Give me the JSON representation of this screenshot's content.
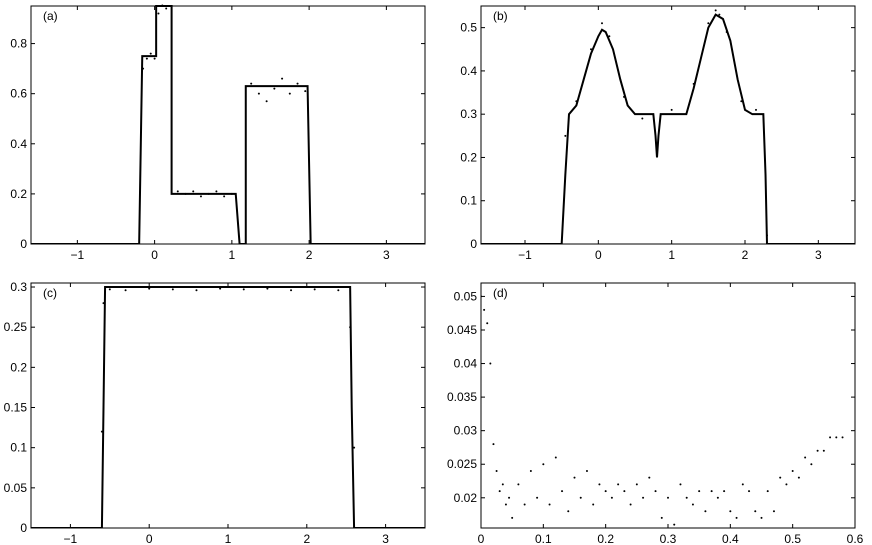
{
  "chart_data": [
    {
      "id": "a",
      "type": "line",
      "panel_label": "(a)",
      "xlim": [
        -1.6,
        3.5
      ],
      "ylim": [
        0,
        0.95
      ],
      "xticks": [
        -1,
        0,
        1,
        2,
        3
      ],
      "xtick_labels": [
        "−1",
        "0",
        "1",
        "2",
        "3"
      ],
      "yticks": [
        0,
        0.2,
        0.4,
        0.6,
        0.8
      ],
      "ytick_labels": [
        "0",
        "0.2",
        "0.4",
        "0.6",
        "0.8"
      ],
      "series": [
        {
          "style": "solid",
          "x": [
            -1.6,
            -0.2,
            -0.16,
            -0.02,
            -0.02,
            0.02,
            0.02,
            0.18,
            0.18,
            0.22,
            0.22,
            1.05,
            1.05,
            1.1,
            1.1,
            1.18,
            1.18,
            1.98,
            1.98,
            2.02,
            2.02,
            3.5
          ],
          "y": [
            0,
            0,
            0.75,
            0.75,
            0.75,
            0.75,
            0.95,
            0.95,
            0.95,
            0.95,
            0.2,
            0.2,
            0.2,
            0,
            0,
            0,
            0.63,
            0.63,
            0.63,
            0,
            0,
            0
          ]
        },
        {
          "style": "dotted",
          "x": [
            -0.15,
            -0.1,
            -0.05,
            0.0,
            0.05,
            0.1,
            0.15,
            0.3,
            0.4,
            0.5,
            0.6,
            0.7,
            0.8,
            0.9,
            1.0,
            1.25,
            1.35,
            1.45,
            1.55,
            1.65,
            1.75,
            1.85,
            1.95
          ],
          "y": [
            0.7,
            0.74,
            0.76,
            0.74,
            0.92,
            0.96,
            0.94,
            0.21,
            0.2,
            0.21,
            0.19,
            0.2,
            0.21,
            0.19,
            0.2,
            0.64,
            0.6,
            0.57,
            0.62,
            0.66,
            0.6,
            0.64,
            0.61
          ]
        }
      ]
    },
    {
      "id": "b",
      "type": "line",
      "panel_label": "(b)",
      "xlim": [
        -1.6,
        3.5
      ],
      "ylim": [
        0,
        0.55
      ],
      "xticks": [
        -1,
        0,
        1,
        2,
        3
      ],
      "xtick_labels": [
        "−1",
        "0",
        "1",
        "2",
        "3"
      ],
      "yticks": [
        0,
        0.1,
        0.2,
        0.3,
        0.4,
        0.5
      ],
      "ytick_labels": [
        "0",
        "0.1",
        "0.2",
        "0.3",
        "0.4",
        "0.5"
      ],
      "series": [
        {
          "style": "solid",
          "x": [
            -1.6,
            -0.5,
            -0.45,
            -0.4,
            -0.3,
            -0.2,
            -0.1,
            0.0,
            0.05,
            0.1,
            0.2,
            0.3,
            0.4,
            0.5,
            0.6,
            0.7,
            0.75,
            0.78,
            0.8,
            0.82,
            0.85,
            0.9,
            1.0,
            1.1,
            1.2,
            1.3,
            1.4,
            1.5,
            1.6,
            1.7,
            1.8,
            1.9,
            2.0,
            2.1,
            2.2,
            2.25,
            2.28,
            2.3,
            3.5
          ],
          "y": [
            0,
            0,
            0.16,
            0.3,
            0.32,
            0.38,
            0.44,
            0.48,
            0.495,
            0.49,
            0.45,
            0.38,
            0.32,
            0.3,
            0.3,
            0.3,
            0.3,
            0.25,
            0.2,
            0.25,
            0.3,
            0.3,
            0.3,
            0.3,
            0.3,
            0.36,
            0.43,
            0.5,
            0.53,
            0.52,
            0.47,
            0.38,
            0.31,
            0.3,
            0.3,
            0.3,
            0.16,
            0,
            0
          ]
        },
        {
          "style": "dotted",
          "x": [
            -0.45,
            -0.3,
            -0.1,
            0.05,
            0.15,
            0.35,
            0.6,
            0.8,
            1.0,
            1.3,
            1.5,
            1.6,
            1.65,
            1.75,
            1.95,
            2.15,
            2.3
          ],
          "y": [
            0.25,
            0.33,
            0.45,
            0.51,
            0.48,
            0.34,
            0.29,
            0.21,
            0.31,
            0.37,
            0.51,
            0.54,
            0.53,
            0.49,
            0.33,
            0.31,
            0.02
          ]
        }
      ]
    },
    {
      "id": "c",
      "type": "line",
      "panel_label": "(c)",
      "xlim": [
        -1.5,
        3.5
      ],
      "ylim": [
        0,
        0.305
      ],
      "xticks": [
        -1,
        0,
        1,
        2,
        3
      ],
      "xtick_labels": [
        "−1",
        "0",
        "1",
        "2",
        "3"
      ],
      "yticks": [
        0,
        0.05,
        0.1,
        0.15,
        0.2,
        0.25,
        0.3
      ],
      "ytick_labels": [
        "0",
        "0.05",
        "0.1",
        "0.15",
        "0.2",
        "0.25",
        "0.3"
      ],
      "series": [
        {
          "style": "solid",
          "x": [
            -1.5,
            -0.6,
            -0.58,
            -0.56,
            2.55,
            2.57,
            2.6,
            3.5
          ],
          "y": [
            0,
            0,
            0.15,
            0.3,
            0.3,
            0.15,
            0,
            0
          ]
        },
        {
          "style": "dotted",
          "x": [
            -0.62,
            -0.6,
            -0.58,
            -0.5,
            -0.3,
            0.0,
            0.3,
            0.6,
            0.9,
            1.2,
            1.5,
            1.8,
            2.1,
            2.4,
            2.55,
            2.6,
            2.63
          ],
          "y": [
            0.0,
            0.12,
            0.28,
            0.297,
            0.296,
            0.298,
            0.297,
            0.296,
            0.298,
            0.297,
            0.298,
            0.296,
            0.297,
            0.296,
            0.25,
            0.1,
            0.0
          ]
        }
      ]
    },
    {
      "id": "d",
      "type": "line",
      "panel_label": "(d)",
      "xlim": [
        0,
        0.6
      ],
      "ylim": [
        0.0155,
        0.052
      ],
      "xticks": [
        0,
        0.1,
        0.2,
        0.3,
        0.4,
        0.5,
        0.6
      ],
      "xtick_labels": [
        "0",
        "0.1",
        "0.2",
        "0.3",
        "0.4",
        "0.5",
        "0.6"
      ],
      "yticks": [
        0.02,
        0.025,
        0.03,
        0.035,
        0.04,
        0.045,
        0.05
      ],
      "ytick_labels": [
        "0.02",
        "0.025",
        "0.03",
        "0.035",
        "0.04",
        "0.045",
        "0.05"
      ],
      "series": [
        {
          "style": "dotted",
          "x": [
            0.0,
            0.005,
            0.01,
            0.015,
            0.02,
            0.025,
            0.03,
            0.035,
            0.04,
            0.045,
            0.05,
            0.06,
            0.07,
            0.08,
            0.09,
            0.1,
            0.11,
            0.12,
            0.13,
            0.14,
            0.15,
            0.16,
            0.17,
            0.18,
            0.19,
            0.2,
            0.21,
            0.22,
            0.23,
            0.24,
            0.25,
            0.26,
            0.27,
            0.28,
            0.29,
            0.3,
            0.31,
            0.32,
            0.33,
            0.34,
            0.35,
            0.36,
            0.37,
            0.38,
            0.39,
            0.4,
            0.41,
            0.42,
            0.43,
            0.44,
            0.45,
            0.46,
            0.47,
            0.48,
            0.49,
            0.5,
            0.51,
            0.52,
            0.53,
            0.54,
            0.55,
            0.56,
            0.57,
            0.58
          ],
          "y": [
            0.05,
            0.048,
            0.046,
            0.04,
            0.028,
            0.024,
            0.021,
            0.022,
            0.019,
            0.02,
            0.017,
            0.022,
            0.019,
            0.024,
            0.02,
            0.025,
            0.019,
            0.026,
            0.021,
            0.018,
            0.023,
            0.02,
            0.024,
            0.019,
            0.022,
            0.021,
            0.02,
            0.022,
            0.021,
            0.019,
            0.022,
            0.02,
            0.023,
            0.021,
            0.017,
            0.02,
            0.016,
            0.022,
            0.02,
            0.019,
            0.021,
            0.018,
            0.021,
            0.02,
            0.021,
            0.018,
            0.017,
            0.022,
            0.021,
            0.018,
            0.017,
            0.021,
            0.018,
            0.023,
            0.022,
            0.024,
            0.023,
            0.026,
            0.025,
            0.027,
            0.027,
            0.029,
            0.029,
            0.029
          ]
        }
      ]
    }
  ]
}
